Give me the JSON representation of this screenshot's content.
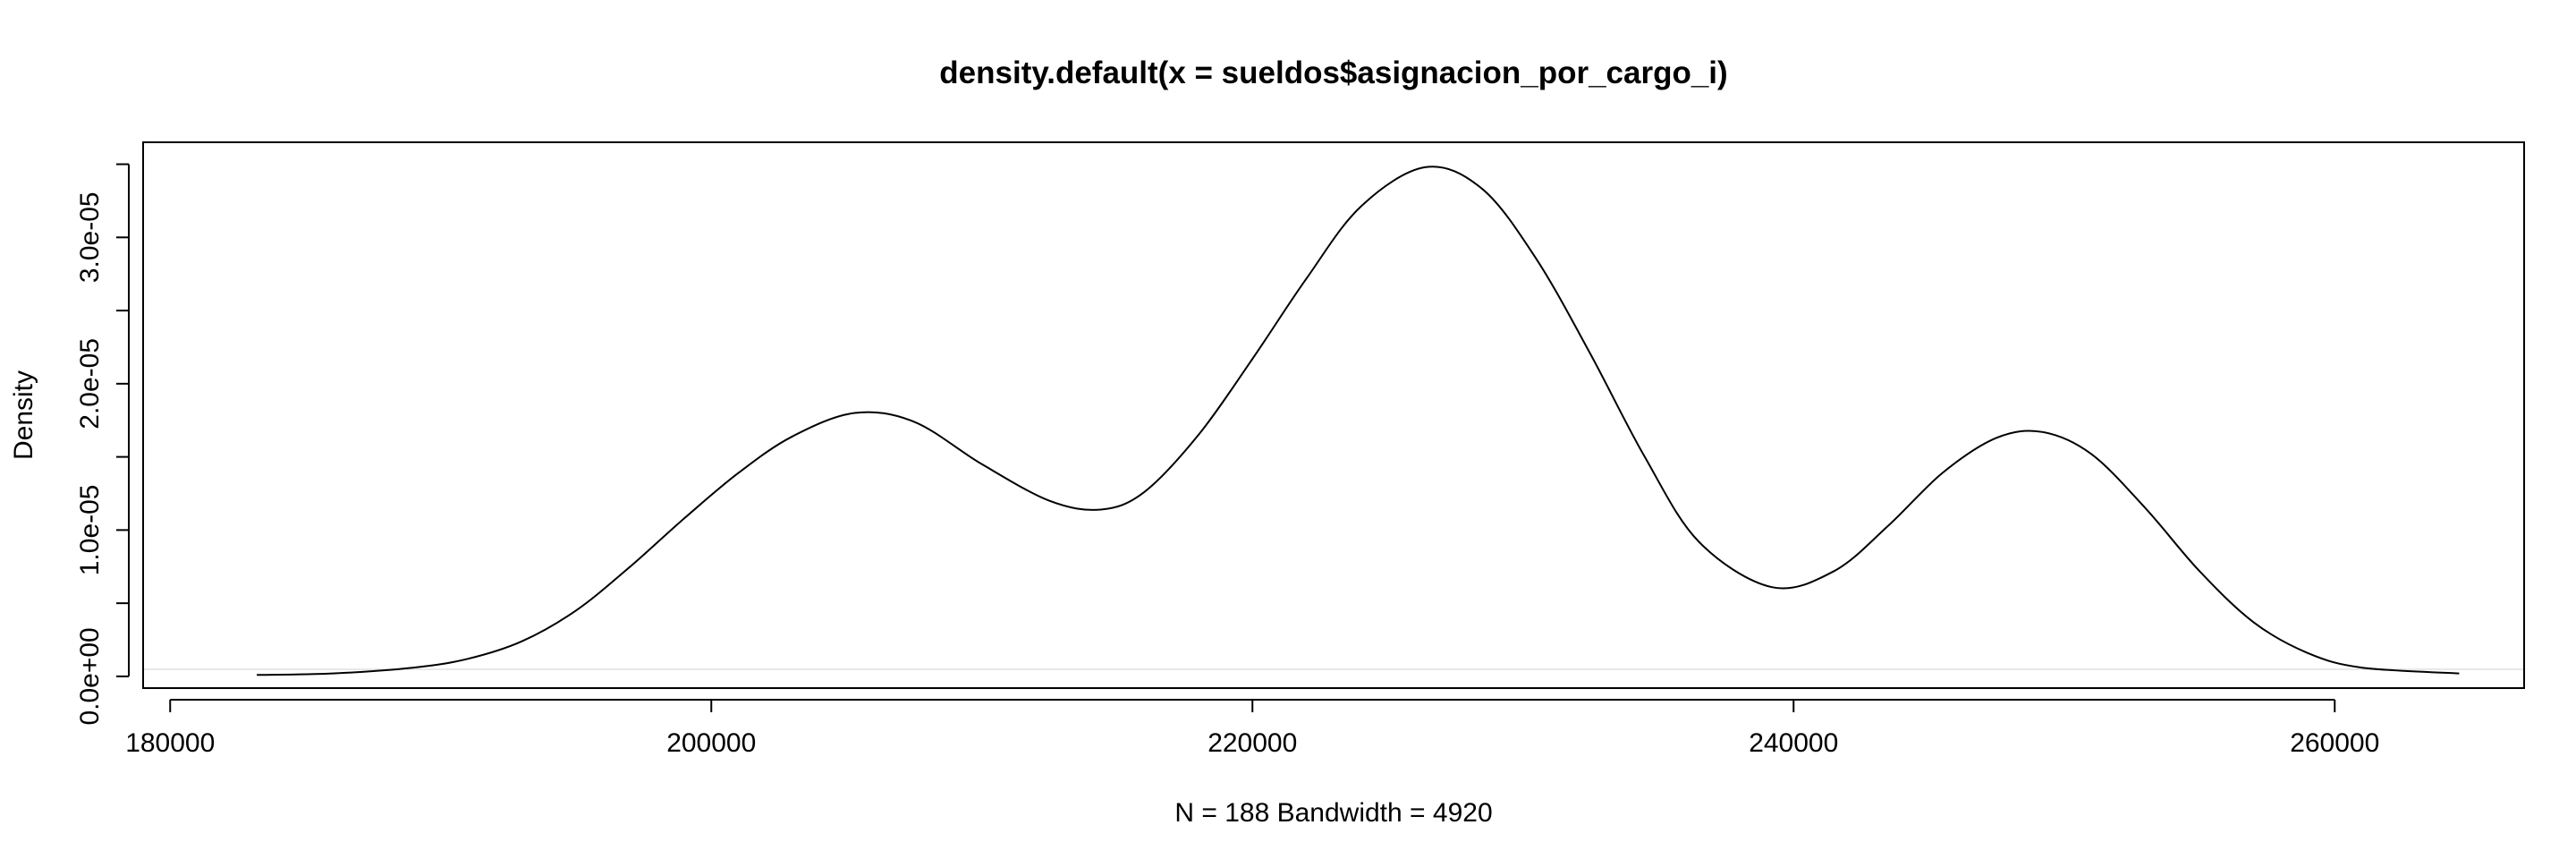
{
  "chart_data": {
    "type": "line",
    "title": "density.default(x = sueldos$asignacion_por_cargo_i)",
    "xlabel": "N = 188   Bandwidth = 4920",
    "ylabel": "Density",
    "xlim": [
      179000,
      267000
    ],
    "ylim": [
      -8e-07,
      3.65e-05
    ],
    "x_ticks": [
      180000,
      200000,
      220000,
      240000,
      260000
    ],
    "x_tick_labels": [
      "180000",
      "200000",
      "220000",
      "240000",
      "260000"
    ],
    "y_ticks": [
      0,
      5e-06,
      1e-05,
      1.5e-05,
      2e-05,
      2.5e-05,
      3e-05,
      3.5e-05
    ],
    "y_tick_labels": [
      "0.0e+00",
      "",
      "1.0e-05",
      "",
      "2.0e-05",
      "",
      "3.0e-05",
      ""
    ],
    "grid": false,
    "legend": "none",
    "series": [
      {
        "x": [
          183200,
          186000,
          189000,
          191000,
          193000,
          195000,
          197000,
          199000,
          201000,
          203000,
          205300,
          207500,
          210000,
          212500,
          214400,
          216000,
          218000,
          220000,
          222000,
          224000,
          226400,
          228500,
          230500,
          232500,
          234500,
          236500,
          239200,
          241500,
          243500,
          245500,
          247500,
          249200,
          251000,
          253000,
          255000,
          257000,
          259000,
          261000,
          264600
        ],
        "y": [
          1e-07,
          2e-07,
          6e-07,
          1.2e-06,
          2.4e-06,
          4.5e-06,
          7.5e-06,
          1.08e-05,
          1.39e-05,
          1.64e-05,
          1.8e-05,
          1.74e-05,
          1.45e-05,
          1.2e-05,
          1.14e-05,
          1.26e-05,
          1.65e-05,
          2.17e-05,
          2.72e-05,
          3.21e-05,
          3.48e-05,
          3.33e-05,
          2.85e-05,
          2.2e-05,
          1.5e-05,
          9.2e-06,
          6.1e-06,
          7.2e-06,
          1.03e-05,
          1.39e-05,
          1.63e-05,
          1.67e-05,
          1.52e-05,
          1.15e-05,
          7.2e-06,
          3.7e-06,
          1.6e-06,
          6e-07,
          2e-07
        ]
      }
    ]
  }
}
